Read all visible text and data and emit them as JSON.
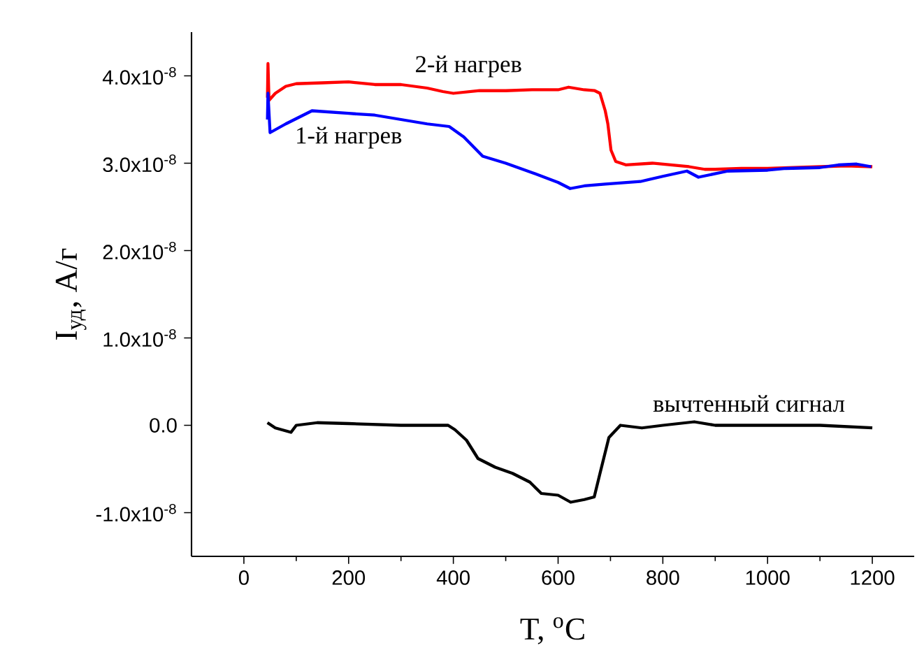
{
  "chart_data": {
    "type": "line",
    "xlabel": "T, $^{o}$C",
    "ylabel": "I$_{уд}$, А/г",
    "xlim": [
      -100,
      1280
    ],
    "ylim": [
      -1.5e-08,
      4.5e-08
    ],
    "xticks": [
      0,
      200,
      400,
      600,
      800,
      1000,
      1200,
      {
        "value": 100,
        "label": null
      },
      {
        "value": 300,
        "label": null
      },
      {
        "value": 500,
        "label": null
      },
      {
        "value": 700,
        "label": null
      },
      {
        "value": 900,
        "label": null
      },
      {
        "value": 1100,
        "label": null
      }
    ],
    "yticks": [
      {
        "value": -1e-08,
        "label": "-1.0x10$^{-8}$"
      },
      {
        "value": 0,
        "label": "0.0"
      },
      {
        "value": 1e-08,
        "label": "1.0x10$^{-8}$"
      },
      {
        "value": 2e-08,
        "label": "2.0x10$^{-8}$"
      },
      {
        "value": 3e-08,
        "label": "3.0x10$^{-8}$"
      },
      {
        "value": 4e-08,
        "label": "4.0x10$^{-8}$"
      }
    ],
    "legend": false,
    "grid": false,
    "marker": "none",
    "line_style": "solid",
    "series": [
      {
        "name": "2-й нагрев",
        "color": "#ff0000",
        "x": [
          45,
          46,
          48,
          60,
          80,
          100,
          150,
          200,
          250,
          300,
          350,
          380,
          400,
          450,
          500,
          550,
          600,
          620,
          650,
          670,
          680,
          690,
          695,
          701,
          710,
          730,
          780,
          850,
          880,
          900,
          950,
          1000,
          1050,
          1100,
          1150,
          1200
        ],
        "values": [
          3.75e-08,
          4.14e-08,
          3.72e-08,
          3.8e-08,
          3.88e-08,
          3.91e-08,
          3.92e-08,
          3.93e-08,
          3.9e-08,
          3.9e-08,
          3.86e-08,
          3.82e-08,
          3.8e-08,
          3.83e-08,
          3.83e-08,
          3.84e-08,
          3.84e-08,
          3.87e-08,
          3.84e-08,
          3.83e-08,
          3.8e-08,
          3.6e-08,
          3.45e-08,
          3.15e-08,
          3.02e-08,
          2.98e-08,
          3e-08,
          2.96e-08,
          2.93e-08,
          2.93e-08,
          2.94e-08,
          2.94e-08,
          2.95e-08,
          2.96e-08,
          2.97e-08,
          2.96e-08
        ]
      },
      {
        "name": "1-й нагрев",
        "color": "#0000ff",
        "x": [
          45,
          46,
          50,
          80,
          130,
          200,
          250,
          300,
          350,
          392,
          420,
          456,
          500,
          556,
          600,
          623,
          650,
          690,
          757,
          800,
          846,
          868,
          924,
          1000,
          1035,
          1100,
          1135,
          1170,
          1198
        ],
        "values": [
          3.5e-08,
          3.8e-08,
          3.35e-08,
          3.45e-08,
          3.6e-08,
          3.57e-08,
          3.55e-08,
          3.5e-08,
          3.45e-08,
          3.42e-08,
          3.3e-08,
          3.08e-08,
          3e-08,
          2.88e-08,
          2.78e-08,
          2.71e-08,
          2.74e-08,
          2.76e-08,
          2.79e-08,
          2.85e-08,
          2.91e-08,
          2.84e-08,
          2.91e-08,
          2.92e-08,
          2.94e-08,
          2.95e-08,
          2.98e-08,
          2.99e-08,
          2.96e-08
        ]
      },
      {
        "name": "вычтенный сигнал",
        "color": "#000000",
        "x": [
          45,
          60,
          90,
          100,
          140,
          200,
          300,
          390,
          403,
          425,
          447,
          480,
          513,
          546,
          568,
          600,
          624,
          650,
          669,
          680,
          697,
          719,
          760,
          800,
          860,
          900,
          1000,
          1100,
          1200
        ],
        "values": [
          3e-10,
          -3e-10,
          -8e-10,
          0.0,
          3e-10,
          2e-10,
          0.0,
          0.0,
          -5e-10,
          -1.7e-09,
          -3.8e-09,
          -4.8e-09,
          -5.5e-09,
          -6.5e-09,
          -7.8e-09,
          -8e-09,
          -8.8e-09,
          -8.5e-09,
          -8.2e-09,
          -5.5e-09,
          -1.4e-09,
          0.0,
          -3e-10,
          0.0,
          4e-10,
          0.0,
          0.0,
          0.0,
          -3e-10
        ]
      }
    ]
  }
}
